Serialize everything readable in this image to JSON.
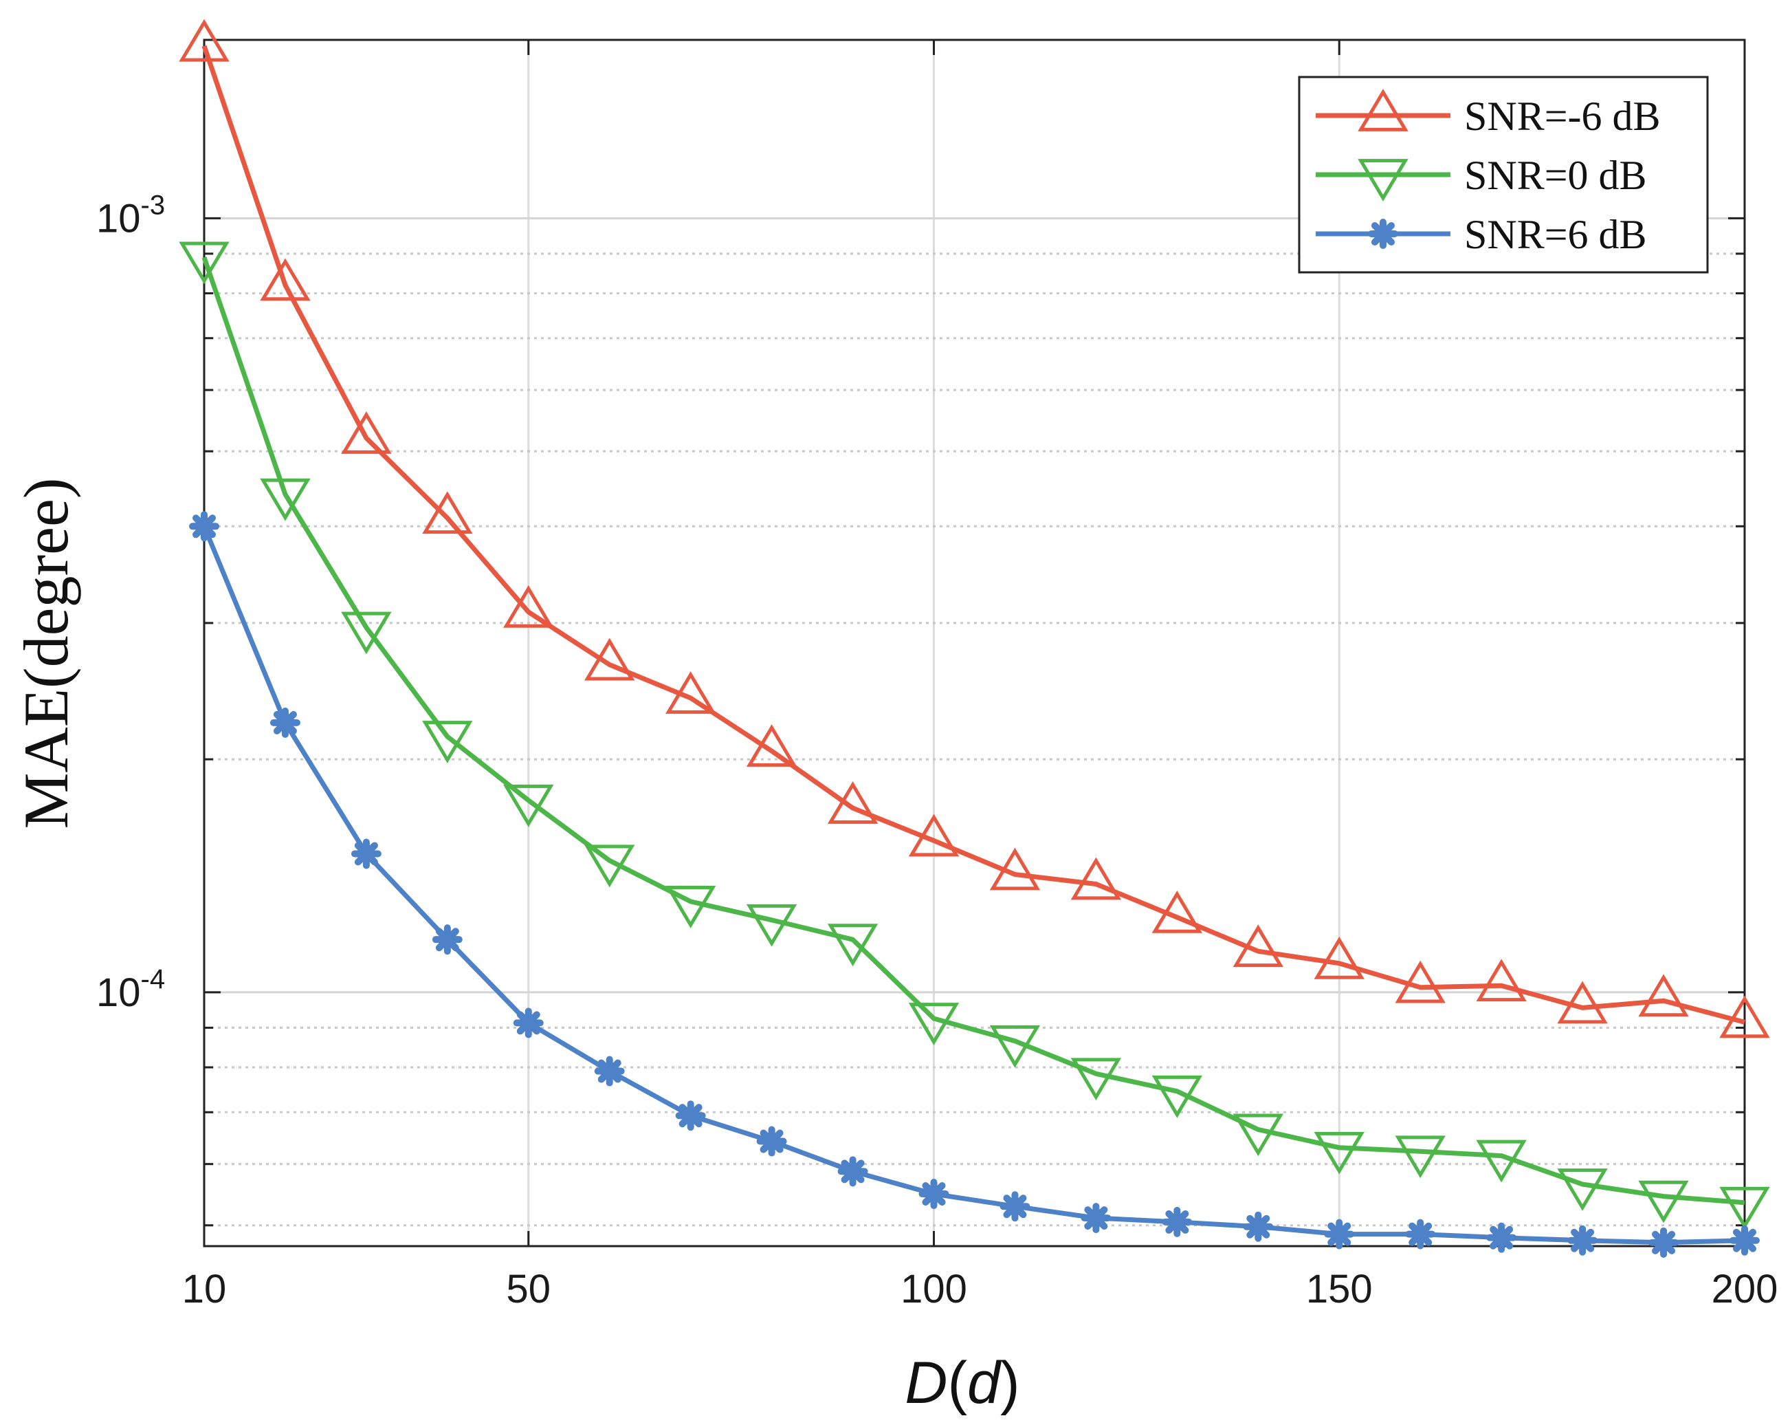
{
  "chart_data": {
    "type": "line",
    "title": "",
    "xlabel": "D(d)",
    "xlabel_parts": {
      "pre": "D",
      "open": "(",
      "var": "d",
      "close": ")"
    },
    "ylabel": "MAE(degree)",
    "yscale": "log",
    "xlim": [
      10,
      200
    ],
    "ylim": [
      4.7e-05,
      0.0017
    ],
    "grid": true,
    "legend_position": "top-right",
    "x": [
      10,
      20,
      30,
      40,
      50,
      60,
      70,
      80,
      90,
      100,
      110,
      120,
      130,
      140,
      150,
      160,
      170,
      180,
      190,
      200
    ],
    "xticks": [
      10,
      50,
      100,
      150,
      200
    ],
    "xtick_labels": [
      "10",
      "50",
      "100",
      "150",
      "200"
    ],
    "yticks": [
      {
        "value": 0.001,
        "base": "10",
        "exp": "-3"
      },
      {
        "value": 0.0001,
        "base": "10",
        "exp": "-4"
      }
    ],
    "series": [
      {
        "name": "SNR=-6 dB",
        "color": "#E8573F",
        "marker": "triangle-up",
        "values": [
          0.00167,
          0.00082,
          0.00052,
          0.00041,
          0.00031,
          0.000265,
          0.00024,
          0.000205,
          0.000173,
          0.000157,
          0.000142,
          0.000138,
          0.000125,
          0.000113,
          0.000109,
          0.0001015,
          0.000102,
          9.55e-05,
          9.75e-05,
          9.15e-05
        ]
      },
      {
        "name": "SNR=0 dB",
        "color": "#4CB649",
        "marker": "triangle-down",
        "values": [
          0.00089,
          0.00044,
          0.000296,
          0.000214,
          0.000177,
          0.000148,
          0.000131,
          0.000124,
          0.000117,
          9.25e-05,
          8.65e-05,
          7.85e-05,
          7.45e-05,
          6.65e-05,
          6.3e-05,
          6.23e-05,
          6.15e-05,
          5.65e-05,
          5.45e-05,
          5.35e-05
        ]
      },
      {
        "name": "SNR=6 dB",
        "color": "#4D82C8",
        "marker": "star",
        "values": [
          0.0004,
          0.000223,
          0.000151,
          0.000117,
          9.13e-05,
          7.91e-05,
          6.93e-05,
          6.42e-05,
          5.87e-05,
          5.49e-05,
          5.29e-05,
          5.11e-05,
          5.05e-05,
          4.98e-05,
          4.87e-05,
          4.87e-05,
          4.82e-05,
          4.78e-05,
          4.75e-05,
          4.78e-05
        ]
      }
    ]
  }
}
